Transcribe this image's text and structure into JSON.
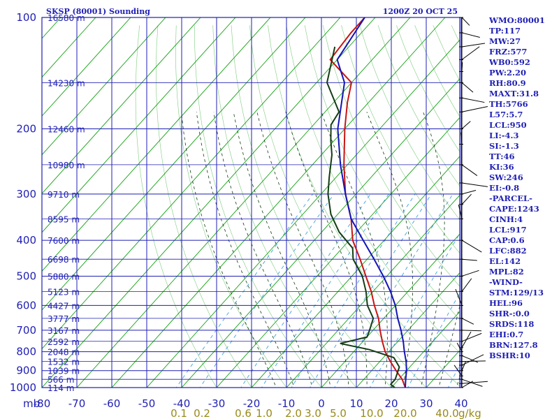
{
  "header": {
    "title": "SKSP (80001) Sounding",
    "time": "1200Z 20 OCT 25"
  },
  "chart_data": {
    "type": "line",
    "title": "SKSP (80001) Sounding",
    "subtitle": "1200Z 20 OCT 25",
    "xlabel": "",
    "ylabel": "",
    "x_axis_unit_label": "mb",
    "y_scale": "log",
    "ylim": [
      1000,
      100
    ],
    "xlim": [
      -80,
      40
    ],
    "x_ticks": [
      -80,
      -70,
      -60,
      -50,
      -40,
      -30,
      -20,
      -10,
      0,
      10,
      20,
      30,
      40
    ],
    "x_tick_labels": [
      "-80",
      "-70",
      "-60",
      "-50",
      "-40",
      "-30",
      "-20",
      "-10",
      "0",
      "10",
      "20",
      "30",
      "40"
    ],
    "pressure_ticks": [
      100,
      200,
      300,
      400,
      500,
      600,
      700,
      800,
      900,
      1000
    ],
    "pressure_tick_labels": [
      "100",
      "200",
      "300",
      "400",
      "500",
      "600",
      "700",
      "800",
      "900",
      "1000"
    ],
    "mixing_ratio_values": [
      0.1,
      0.2,
      0.6,
      1.0,
      2.0,
      3.0,
      5.0,
      10.0,
      20.0,
      40.0
    ],
    "mixing_ratio_labels": [
      "0.1",
      "0.2",
      "0.6",
      "1.0",
      "2.0",
      "3.0",
      "5.0",
      "10.0",
      "20.0",
      "40.0"
    ],
    "mixing_ratio_unit": "g/kg",
    "heights": [
      {
        "p": 100,
        "label": "16580 m"
      },
      {
        "p": 150,
        "label": "14230 m"
      },
      {
        "p": 200,
        "label": "12460 m"
      },
      {
        "p": 250,
        "label": "10980 m"
      },
      {
        "p": 300,
        "label": "9710 m"
      },
      {
        "p": 350,
        "label": "8595 m"
      },
      {
        "p": 400,
        "label": "7600 m"
      },
      {
        "p": 450,
        "label": "6698 m"
      },
      {
        "p": 500,
        "label": "5880 m"
      },
      {
        "p": 550,
        "label": "5123 m"
      },
      {
        "p": 600,
        "label": "4427 m"
      },
      {
        "p": 650,
        "label": "3777 m"
      },
      {
        "p": 700,
        "label": "3167 m"
      },
      {
        "p": 750,
        "label": "2592 m"
      },
      {
        "p": 800,
        "label": "2048 m"
      },
      {
        "p": 850,
        "label": "1532 m"
      },
      {
        "p": 900,
        "label": "1039 m"
      },
      {
        "p": 950,
        "label": "566 m"
      },
      {
        "p": 1000,
        "label": "114 m"
      }
    ],
    "series": [
      {
        "color": "#c81414",
        "points": [
          [
            100,
            -83
          ],
          [
            110,
            -83
          ],
          [
            130,
            -82
          ],
          [
            150,
            -70
          ],
          [
            170,
            -66
          ],
          [
            200,
            -60
          ],
          [
            250,
            -51
          ],
          [
            300,
            -43
          ],
          [
            350,
            -35
          ],
          [
            400,
            -29
          ],
          [
            450,
            -22
          ],
          [
            500,
            -16
          ],
          [
            550,
            -10.5
          ],
          [
            600,
            -6
          ],
          [
            650,
            -1.5
          ],
          [
            700,
            2
          ],
          [
            750,
            5.5
          ],
          [
            800,
            9
          ],
          [
            850,
            13
          ],
          [
            900,
            17
          ],
          [
            950,
            21
          ],
          [
            1000,
            24
          ]
        ]
      },
      {
        "color": "#143c14",
        "points": [
          [
            120,
            -84
          ],
          [
            150,
            -77
          ],
          [
            180,
            -66
          ],
          [
            195,
            -65
          ],
          [
            215,
            -61
          ],
          [
            235,
            -57
          ],
          [
            270,
            -52
          ],
          [
            300,
            -48
          ],
          [
            340,
            -42
          ],
          [
            380,
            -35
          ],
          [
            420,
            -27
          ],
          [
            450,
            -24
          ],
          [
            500,
            -17
          ],
          [
            550,
            -12
          ],
          [
            600,
            -8
          ],
          [
            650,
            -3
          ],
          [
            700,
            -1
          ],
          [
            730,
            0
          ],
          [
            760,
            -6
          ],
          [
            790,
            4
          ],
          [
            830,
            13
          ],
          [
            880,
            17
          ],
          [
            950,
            19
          ],
          [
            980,
            19
          ],
          [
            1000,
            21
          ]
        ]
      },
      {
        "color": "#1414b4",
        "points": [
          [
            100,
            -83
          ],
          [
            130,
            -80
          ],
          [
            150,
            -72
          ],
          [
            200,
            -62
          ],
          [
            250,
            -52
          ],
          [
            300,
            -43
          ],
          [
            350,
            -35
          ],
          [
            400,
            -26
          ],
          [
            450,
            -18
          ],
          [
            500,
            -11
          ],
          [
            550,
            -5
          ],
          [
            600,
            0
          ],
          [
            650,
            4
          ],
          [
            700,
            8
          ],
          [
            750,
            11.5
          ],
          [
            800,
            14.5
          ],
          [
            850,
            17.5
          ],
          [
            900,
            20
          ],
          [
            950,
            22
          ],
          [
            1000,
            24
          ]
        ]
      }
    ]
  },
  "indices": [
    "WMO:80001",
    "TP:117",
    "MW:27",
    "FRZ:577",
    "WB0:592",
    "PW:2.20",
    "RH:80.9",
    "MAXT:31.8",
    "TH:5766",
    "L57:5.7",
    "LCL:950",
    "LI:-4.3",
    "SI:-1.3",
    "TT:46",
    "KI:36",
    "SW:246",
    "EI:-0.8",
    "-PARCEL-",
    "CAPE:1243",
    "CINH:4",
    "LCL:917",
    "CAP:0.6",
    "LFC:882",
    "EL:142",
    "MPL:82",
    "-WIND-",
    "STM:129/13",
    "HEL:96",
    "SHR-:0.0",
    "SRDS:118",
    "EHI:0.7",
    "BRN:127.8",
    "BSHR:10"
  ],
  "colors": {
    "grid": "#1f1fb4",
    "dry_adiabat": "#14a014",
    "moist_adiabat": "#143c14",
    "mixing_ratio": "#3fa0dc",
    "text": "#1f1fb4"
  }
}
